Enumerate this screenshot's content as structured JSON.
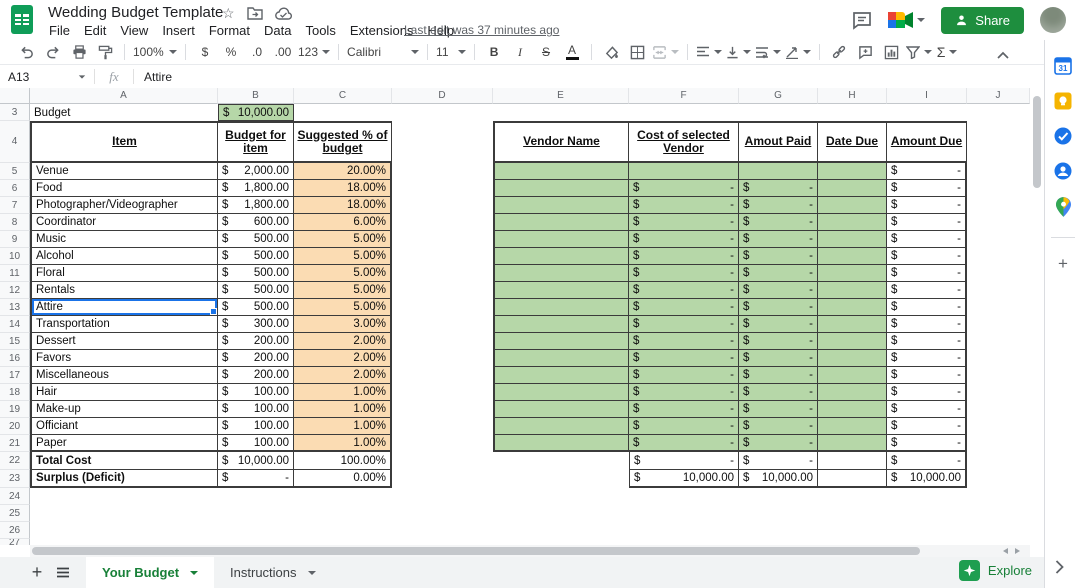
{
  "topbar": {
    "title": "Wedding Budget Template",
    "menu": [
      "File",
      "Edit",
      "View",
      "Insert",
      "Format",
      "Data",
      "Tools",
      "Extensions",
      "Help"
    ],
    "last_edit": "Last edit was 37 minutes ago",
    "share_label": "Share"
  },
  "icons": {
    "star": "☆",
    "add_sheet": "+",
    "add_addon": "+"
  },
  "toolbar": {
    "zoom": "100%",
    "currency": "$",
    "percent": "%",
    "decrease_decimals": ".0",
    "increase_decimals": ".00",
    "more_formats": "123",
    "font": "Calibri",
    "font_size": "11",
    "bold": "B",
    "italic": "I",
    "strikethrough": "S",
    "text_color": "A",
    "functions": "Σ"
  },
  "formula_bar": {
    "name_box": "A13",
    "fx": "fx",
    "value": "Attire"
  },
  "grid": {
    "col_letters": [
      "A",
      "B",
      "C",
      "D",
      "E",
      "F",
      "G",
      "H",
      "I",
      "J"
    ],
    "first_row": 3,
    "last_row": 27,
    "budget_row": {
      "n": 3,
      "label": "Budget",
      "value": "10,000.00"
    },
    "headers": {
      "item": "Item",
      "budget_for_item": "Budget for item",
      "suggested_pct": "Suggested % of budget",
      "vendor_name": "Vendor Name",
      "cost_selected": "Cost of selected Vendor",
      "amount_paid": "Amout Paid",
      "date_due": "Date Due",
      "amount_due": "Amount Due"
    },
    "rows": [
      {
        "n": 5,
        "item": "Venue",
        "amount": "2,000.00",
        "pct": "20.00%",
        "f": "",
        "g": "",
        "i": "-"
      },
      {
        "n": 6,
        "item": "Food",
        "amount": "1,800.00",
        "pct": "18.00%",
        "f": "-",
        "g": "-",
        "i": "-"
      },
      {
        "n": 7,
        "item": "Photographer/Videographer",
        "amount": "1,800.00",
        "pct": "18.00%",
        "f": "-",
        "g": "-",
        "i": "-"
      },
      {
        "n": 8,
        "item": "Coordinator",
        "amount": "600.00",
        "pct": "6.00%",
        "f": "-",
        "g": "-",
        "i": "-"
      },
      {
        "n": 9,
        "item": "Music",
        "amount": "500.00",
        "pct": "5.00%",
        "f": "-",
        "g": "-",
        "i": "-"
      },
      {
        "n": 10,
        "item": "Alcohol",
        "amount": "500.00",
        "pct": "5.00%",
        "f": "-",
        "g": "-",
        "i": "-"
      },
      {
        "n": 11,
        "item": "Floral",
        "amount": "500.00",
        "pct": "5.00%",
        "f": "-",
        "g": "-",
        "i": "-"
      },
      {
        "n": 12,
        "item": "Rentals",
        "amount": "500.00",
        "pct": "5.00%",
        "f": "-",
        "g": "-",
        "i": "-"
      },
      {
        "n": 13,
        "item": "Attire",
        "amount": "500.00",
        "pct": "5.00%",
        "f": "-",
        "g": "-",
        "i": "-",
        "selected": true
      },
      {
        "n": 14,
        "item": "Transportation",
        "amount": "300.00",
        "pct": "3.00%",
        "f": "-",
        "g": "-",
        "i": "-"
      },
      {
        "n": 15,
        "item": "Dessert",
        "amount": "200.00",
        "pct": "2.00%",
        "f": "-",
        "g": "-",
        "i": "-"
      },
      {
        "n": 16,
        "item": "Favors",
        "amount": "200.00",
        "pct": "2.00%",
        "f": "-",
        "g": "-",
        "i": "-"
      },
      {
        "n": 17,
        "item": "Miscellaneous",
        "amount": "200.00",
        "pct": "2.00%",
        "f": "-",
        "g": "-",
        "i": "-"
      },
      {
        "n": 18,
        "item": "Hair",
        "amount": "100.00",
        "pct": "1.00%",
        "f": "-",
        "g": "-",
        "i": "-"
      },
      {
        "n": 19,
        "item": "Make-up",
        "amount": "100.00",
        "pct": "1.00%",
        "f": "-",
        "g": "-",
        "i": "-"
      },
      {
        "n": 20,
        "item": "Officiant",
        "amount": "100.00",
        "pct": "1.00%",
        "f": "-",
        "g": "-",
        "i": "-"
      },
      {
        "n": 21,
        "item": "Paper",
        "amount": "100.00",
        "pct": "1.00%",
        "f": "-",
        "g": "-",
        "i": "-"
      }
    ],
    "total_row": {
      "n": 22,
      "item": "Total Cost",
      "amount": "10,000.00",
      "pct": "100.00%",
      "f": "-",
      "g": "-",
      "i": "-"
    },
    "surplus_row": {
      "n": 23,
      "item": "Surplus (Deficit)",
      "amount": "-",
      "pct": "0.00%",
      "f": "10,000.00",
      "g": "10,000.00",
      "i": "10,000.00"
    }
  },
  "sheet_bar": {
    "tabs": [
      {
        "label": "Your Budget",
        "active": true
      },
      {
        "label": "Instructions",
        "active": false
      }
    ],
    "explore_label": "Explore"
  },
  "colors": {
    "cell_green": "#b6d7a8",
    "cell_orange": "#fbdcb3",
    "share_green": "#1e8e3e",
    "tab_green": "#188038",
    "selection_blue": "#1a73e8",
    "logo_green": "#0f9d58"
  }
}
